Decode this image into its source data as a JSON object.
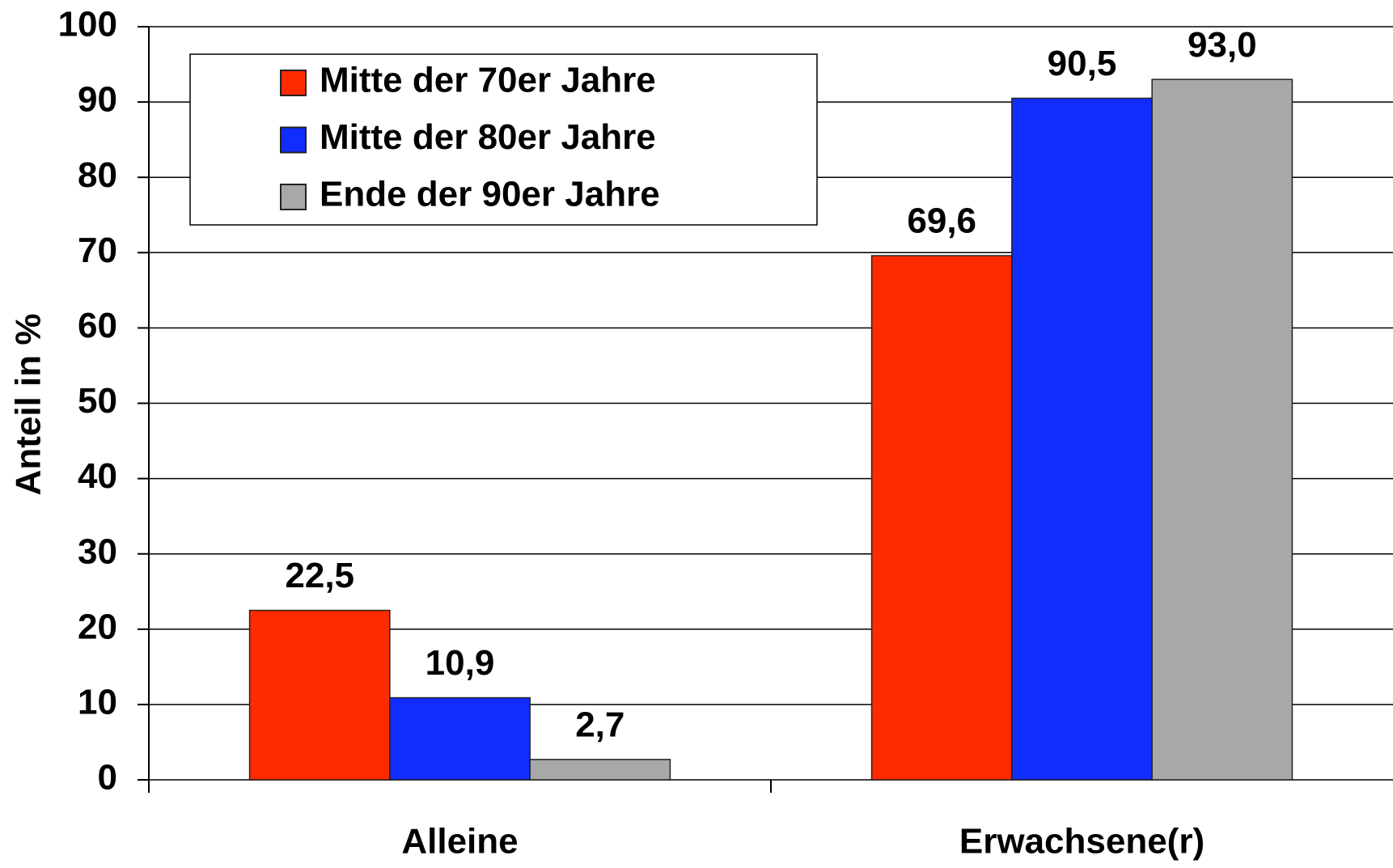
{
  "chart_data": {
    "type": "bar",
    "y_label": "Anteil in %",
    "categories": [
      "Alleine",
      "Erwachsene(r)"
    ],
    "series": [
      {
        "name": "Mitte der 70er Jahre",
        "color": "#ff2a00",
        "values": [
          22.5,
          69.6
        ],
        "value_labels": [
          "22,5",
          "69,6"
        ]
      },
      {
        "name": "Mitte der 80er Jahre",
        "color": "#112cff",
        "values": [
          10.9,
          90.5
        ],
        "value_labels": [
          "10,9",
          "90,5"
        ]
      },
      {
        "name": "Ende der 90er Jahre",
        "color": "#a8a8a8",
        "values": [
          2.7,
          93.0
        ],
        "value_labels": [
          "2,7",
          "93,0"
        ]
      }
    ],
    "ylim": [
      0,
      100
    ],
    "yticks": [
      0,
      10,
      20,
      30,
      40,
      50,
      60,
      70,
      80,
      90,
      100
    ],
    "grid": true,
    "legend": "upper-left"
  }
}
